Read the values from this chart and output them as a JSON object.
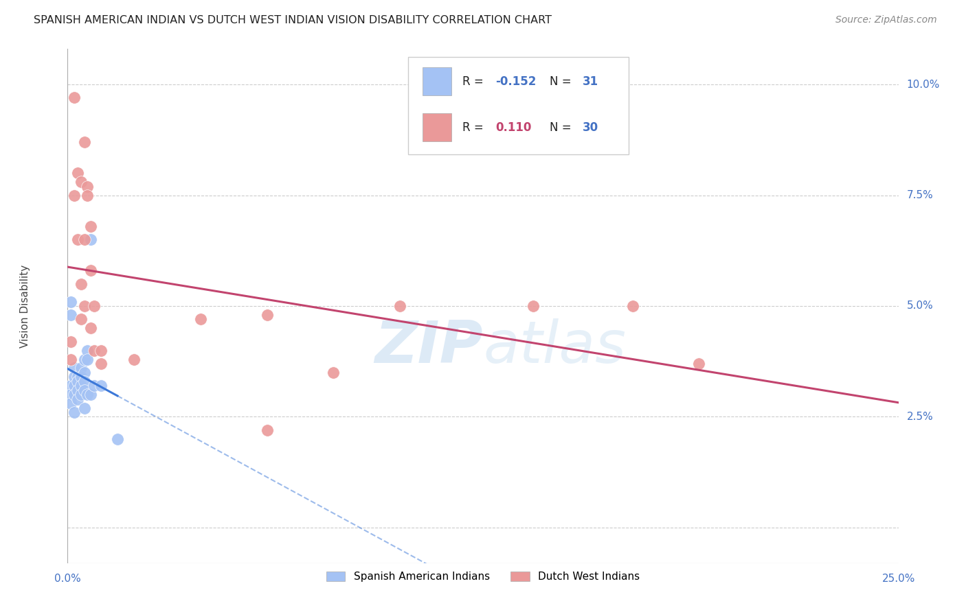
{
  "title": "SPANISH AMERICAN INDIAN VS DUTCH WEST INDIAN VISION DISABILITY CORRELATION CHART",
  "source": "Source: ZipAtlas.com",
  "ylabel": "Vision Disability",
  "legend_label1": "Spanish American Indians",
  "legend_label2": "Dutch West Indians",
  "blue_color": "#a4c2f4",
  "pink_color": "#ea9999",
  "blue_line_color": "#3c78d8",
  "pink_line_color": "#c2446e",
  "watermark_color": "#cfe2f3",
  "xlim": [
    0.0,
    0.25
  ],
  "ylim": [
    -0.008,
    0.108
  ],
  "ytick_positions": [
    0.0,
    0.025,
    0.05,
    0.075,
    0.1
  ],
  "ytick_labels": [
    "",
    "2.5%",
    "5.0%",
    "7.5%",
    "10.0%"
  ],
  "blue_x": [
    0.001,
    0.001,
    0.001,
    0.001,
    0.001,
    0.002,
    0.002,
    0.002,
    0.002,
    0.002,
    0.003,
    0.003,
    0.003,
    0.003,
    0.004,
    0.004,
    0.004,
    0.004,
    0.005,
    0.005,
    0.005,
    0.005,
    0.005,
    0.006,
    0.006,
    0.006,
    0.007,
    0.007,
    0.008,
    0.01,
    0.015
  ],
  "blue_y": [
    0.051,
    0.048,
    0.032,
    0.03,
    0.028,
    0.036,
    0.034,
    0.032,
    0.03,
    0.026,
    0.034,
    0.033,
    0.031,
    0.029,
    0.036,
    0.034,
    0.032,
    0.03,
    0.038,
    0.035,
    0.033,
    0.031,
    0.027,
    0.04,
    0.038,
    0.03,
    0.065,
    0.03,
    0.032,
    0.032,
    0.02
  ],
  "pink_x": [
    0.001,
    0.001,
    0.002,
    0.002,
    0.003,
    0.003,
    0.004,
    0.004,
    0.004,
    0.005,
    0.005,
    0.005,
    0.006,
    0.006,
    0.007,
    0.007,
    0.007,
    0.008,
    0.008,
    0.01,
    0.01,
    0.02,
    0.04,
    0.06,
    0.06,
    0.08,
    0.1,
    0.14,
    0.17,
    0.19
  ],
  "pink_y": [
    0.042,
    0.038,
    0.097,
    0.075,
    0.08,
    0.065,
    0.078,
    0.055,
    0.047,
    0.087,
    0.065,
    0.05,
    0.077,
    0.075,
    0.068,
    0.058,
    0.045,
    0.05,
    0.04,
    0.04,
    0.037,
    0.038,
    0.047,
    0.022,
    0.048,
    0.035,
    0.05,
    0.05,
    0.05,
    0.037
  ]
}
